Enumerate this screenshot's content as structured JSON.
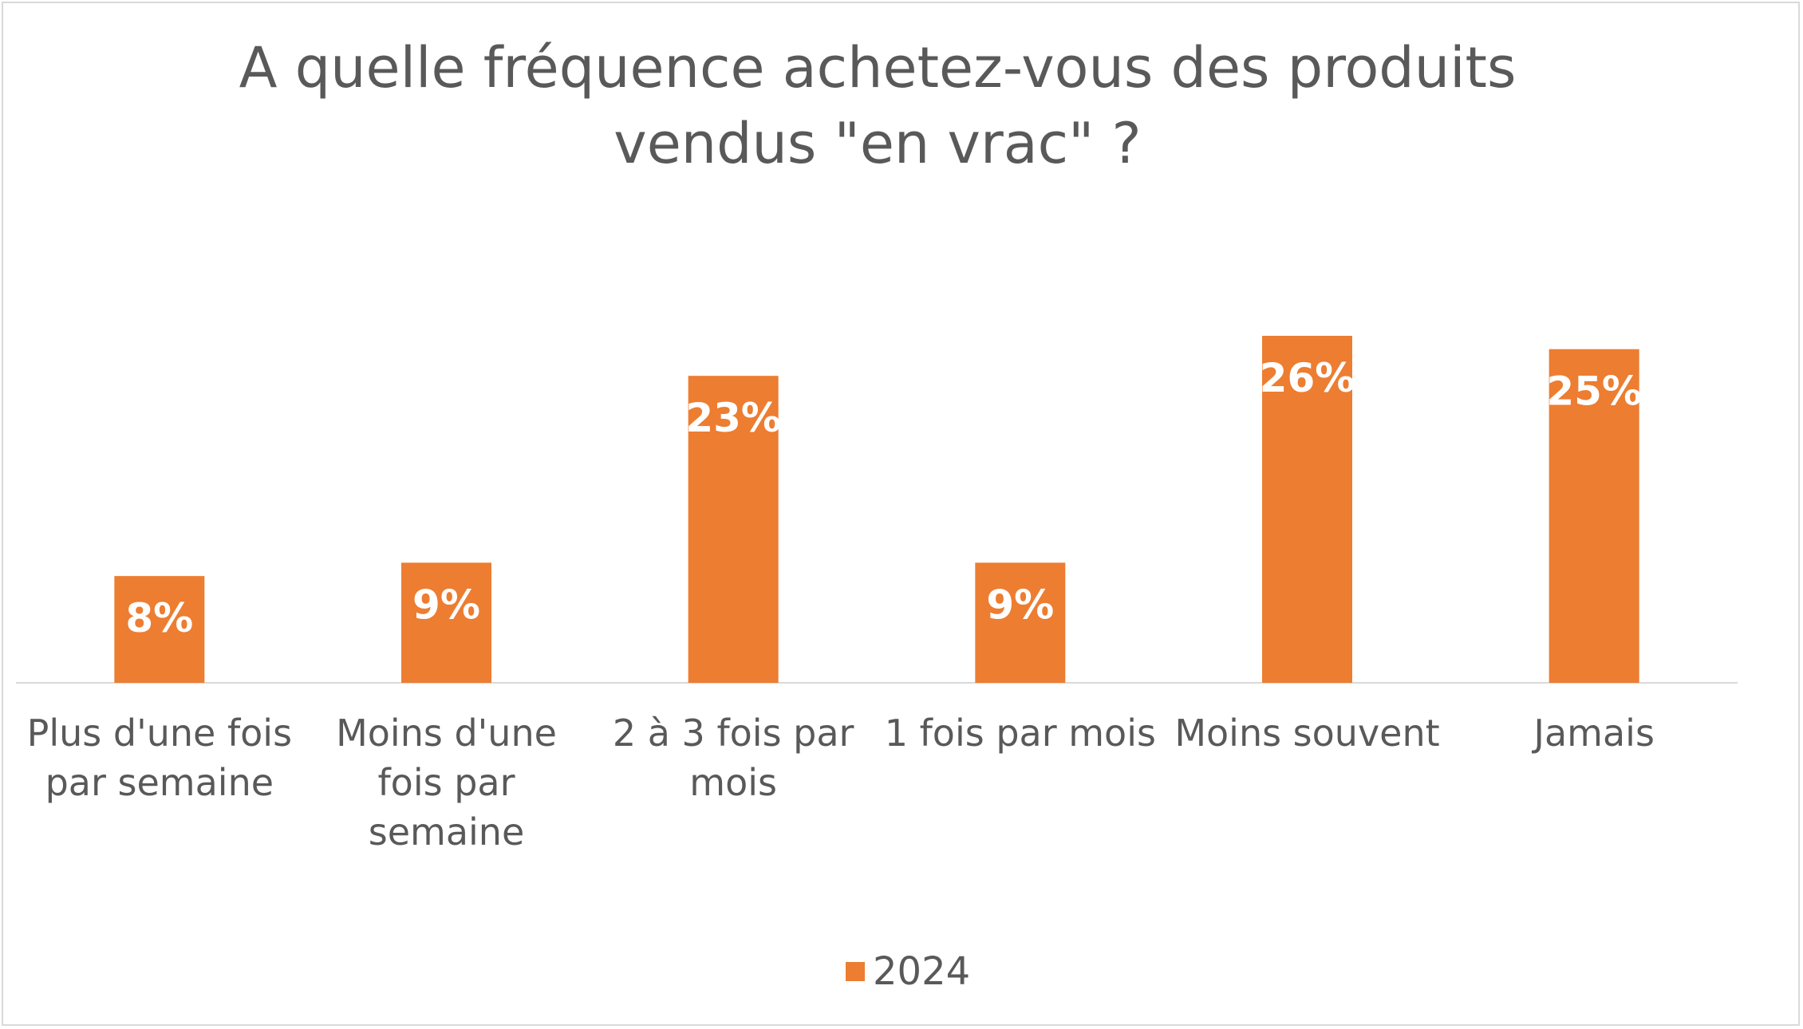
{
  "chart_data": {
    "type": "bar",
    "title": "A quelle fréquence achetez-vous des produits\nvendus \"en vrac\" ?",
    "categories": [
      "Plus d'une fois par semaine",
      "Moins d'une fois par semaine",
      "2 à 3 fois par mois",
      "1 fois par mois",
      "Moins souvent",
      "Jamais"
    ],
    "category_lines": [
      [
        "Plus d'une fois",
        "par semaine"
      ],
      [
        "Moins d'une",
        "fois par",
        "semaine"
      ],
      [
        "2 à 3 fois par",
        "mois"
      ],
      [
        "1 fois par mois"
      ],
      [
        "Moins souvent"
      ],
      [
        "Jamais"
      ]
    ],
    "series": [
      {
        "name": "2024",
        "values": [
          8,
          9,
          23,
          9,
          26,
          25
        ],
        "labels": [
          "8%",
          "9%",
          "23%",
          "9%",
          "26%",
          "25%"
        ],
        "color": "#ed7d31"
      }
    ],
    "ylim": [
      0,
      26
    ],
    "grid": false,
    "legend_position": "bottom",
    "data_label_color": "#ffffff"
  }
}
